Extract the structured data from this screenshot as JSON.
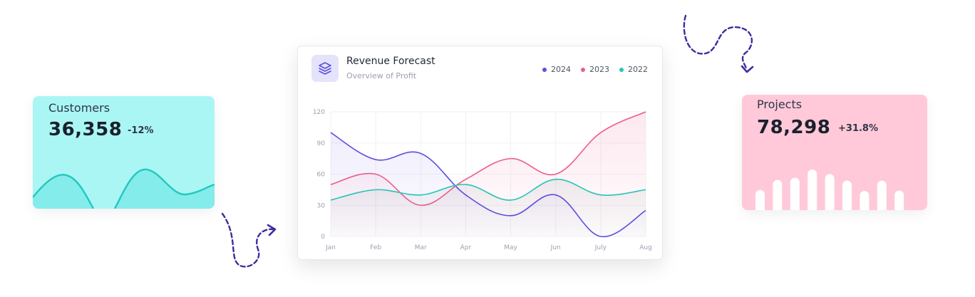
{
  "customers": {
    "title": "Customers",
    "value": "36,358",
    "change": "-12%",
    "color": "#a9f6f5",
    "line_color": "#23c7bd"
  },
  "projects": {
    "title": "Projects",
    "value": "78,298",
    "change": "+31.8%",
    "color": "#ffc9d9",
    "bar_values": [
      0.45,
      0.72,
      0.78,
      1.0,
      0.88,
      0.7,
      0.42,
      0.7,
      0.43
    ]
  },
  "revenue": {
    "icon": "layers-icon",
    "title": "Revenue Forecast",
    "subtitle": "Overview of Profit"
  },
  "chart_data": {
    "type": "line",
    "title": "Revenue Forecast",
    "subtitle": "Overview of Profit",
    "categories": [
      "Jan",
      "Feb",
      "Mar",
      "Apr",
      "May",
      "Jun",
      "July",
      "Aug"
    ],
    "yticks": [
      0,
      30,
      60,
      90,
      120
    ],
    "ylim": [
      0,
      120
    ],
    "grid": true,
    "legend_position": "top-right",
    "series": [
      {
        "name": "2024",
        "color": "#5b4ee0",
        "values": [
          100,
          74,
          80,
          40,
          20,
          40,
          0,
          25
        ]
      },
      {
        "name": "2023",
        "color": "#eb5d8c",
        "values": [
          50,
          60,
          30,
          55,
          75,
          60,
          100,
          120
        ]
      },
      {
        "name": "2022",
        "color": "#25c5b6",
        "values": [
          35,
          45,
          40,
          50,
          35,
          55,
          40,
          45
        ]
      }
    ]
  }
}
